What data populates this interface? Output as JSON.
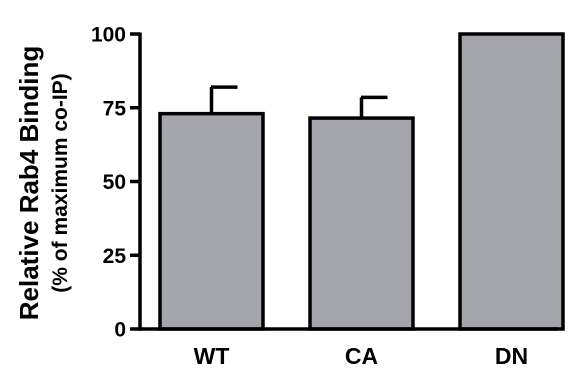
{
  "chart_data": {
    "type": "bar",
    "categories": [
      "WT",
      "CA",
      "DN"
    ],
    "values": [
      73,
      71.5,
      100
    ],
    "error_upper": [
      82,
      78.5,
      100
    ],
    "ylabel": "Relative Rab4 Binding",
    "ylabel_sub": "(% of maximum co-IP)",
    "ylim": [
      0,
      100
    ],
    "yticks": [
      "0",
      "25",
      "50",
      "75",
      "100"
    ],
    "grid": false,
    "bar_color": "#a4a4ac",
    "edge_color": "#000000"
  }
}
